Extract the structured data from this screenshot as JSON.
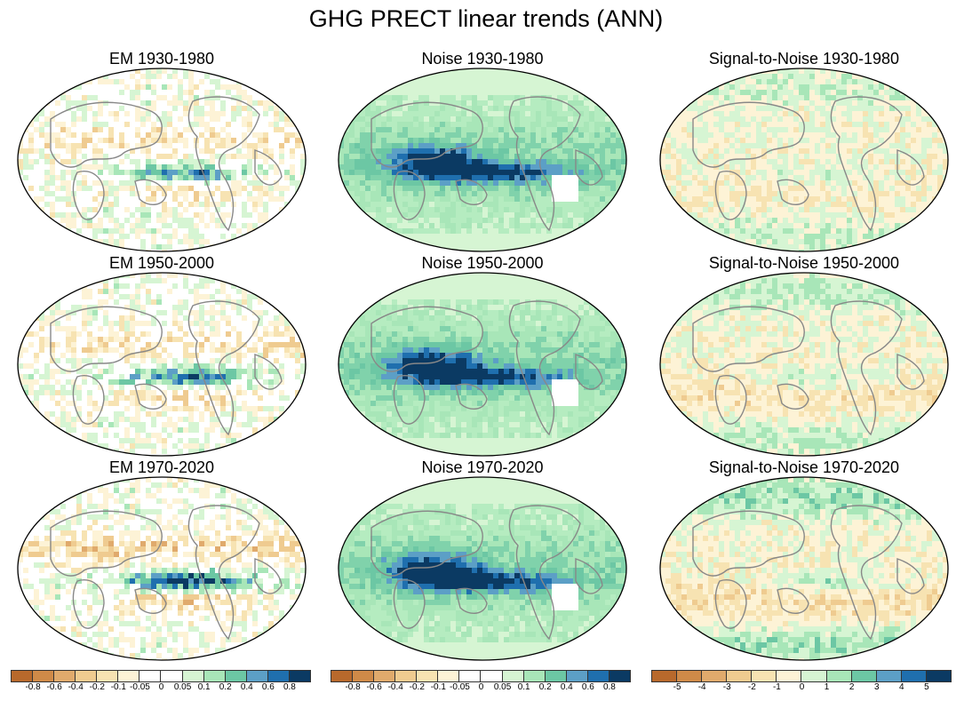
{
  "title": "GHG PRECT linear trends (ANN)",
  "panels": [
    {
      "title": "EM 1930-1980",
      "kind": "em",
      "intensity": 0.9
    },
    {
      "title": "Noise 1930-1980",
      "kind": "noise",
      "intensity": 1.0
    },
    {
      "title": "Signal-to-Noise 1930-1980",
      "kind": "sn",
      "intensity": 0.5
    },
    {
      "title": "EM 1950-2000",
      "kind": "em",
      "intensity": 1.0
    },
    {
      "title": "Noise 1950-2000",
      "kind": "noise",
      "intensity": 1.0
    },
    {
      "title": "Signal-to-Noise 1950-2000",
      "kind": "sn",
      "intensity": 0.7
    },
    {
      "title": "EM 1970-2020",
      "kind": "em",
      "intensity": 1.3
    },
    {
      "title": "Noise 1970-2020",
      "kind": "noise",
      "intensity": 1.0
    },
    {
      "title": "Signal-to-Noise 1970-2020",
      "kind": "sn",
      "intensity": 1.0
    }
  ],
  "colorbars": [
    {
      "labels": [
        "-0.8",
        "-0.6",
        "-0.4",
        "-0.2",
        "-0.1",
        "-0.05",
        "0",
        "0.05",
        "0.1",
        "0.2",
        "0.4",
        "0.6",
        "0.8"
      ]
    },
    {
      "labels": [
        "-0.8",
        "-0.6",
        "-0.4",
        "-0.2",
        "-0.1",
        "-0.05",
        "0",
        "0.05",
        "0.1",
        "0.2",
        "0.4",
        "0.6",
        "0.8"
      ]
    },
    {
      "labels": [
        "-5",
        "-4",
        "-3",
        "-2",
        "-1",
        "0",
        "1",
        "2",
        "3",
        "4",
        "5"
      ]
    }
  ],
  "colors": {
    "em_scale": [
      "#b8692c",
      "#cf8a48",
      "#e0aa6c",
      "#efcb90",
      "#f7e3b2",
      "#fdf3d6",
      "#ffffff",
      "#ffffff",
      "#d6f5d3",
      "#a8e6b8",
      "#6cc7a4",
      "#5c9fc6",
      "#1f6fae",
      "#0b3a63"
    ],
    "sn_scale": [
      "#b8692c",
      "#cf8a48",
      "#e0aa6c",
      "#efcb90",
      "#f7e3b2",
      "#fdf3d6",
      "#d6f5d3",
      "#a8e6b8",
      "#6cc7a4",
      "#5c9fc6",
      "#1f6fae",
      "#0b3a63"
    ],
    "coast": "#888888"
  }
}
